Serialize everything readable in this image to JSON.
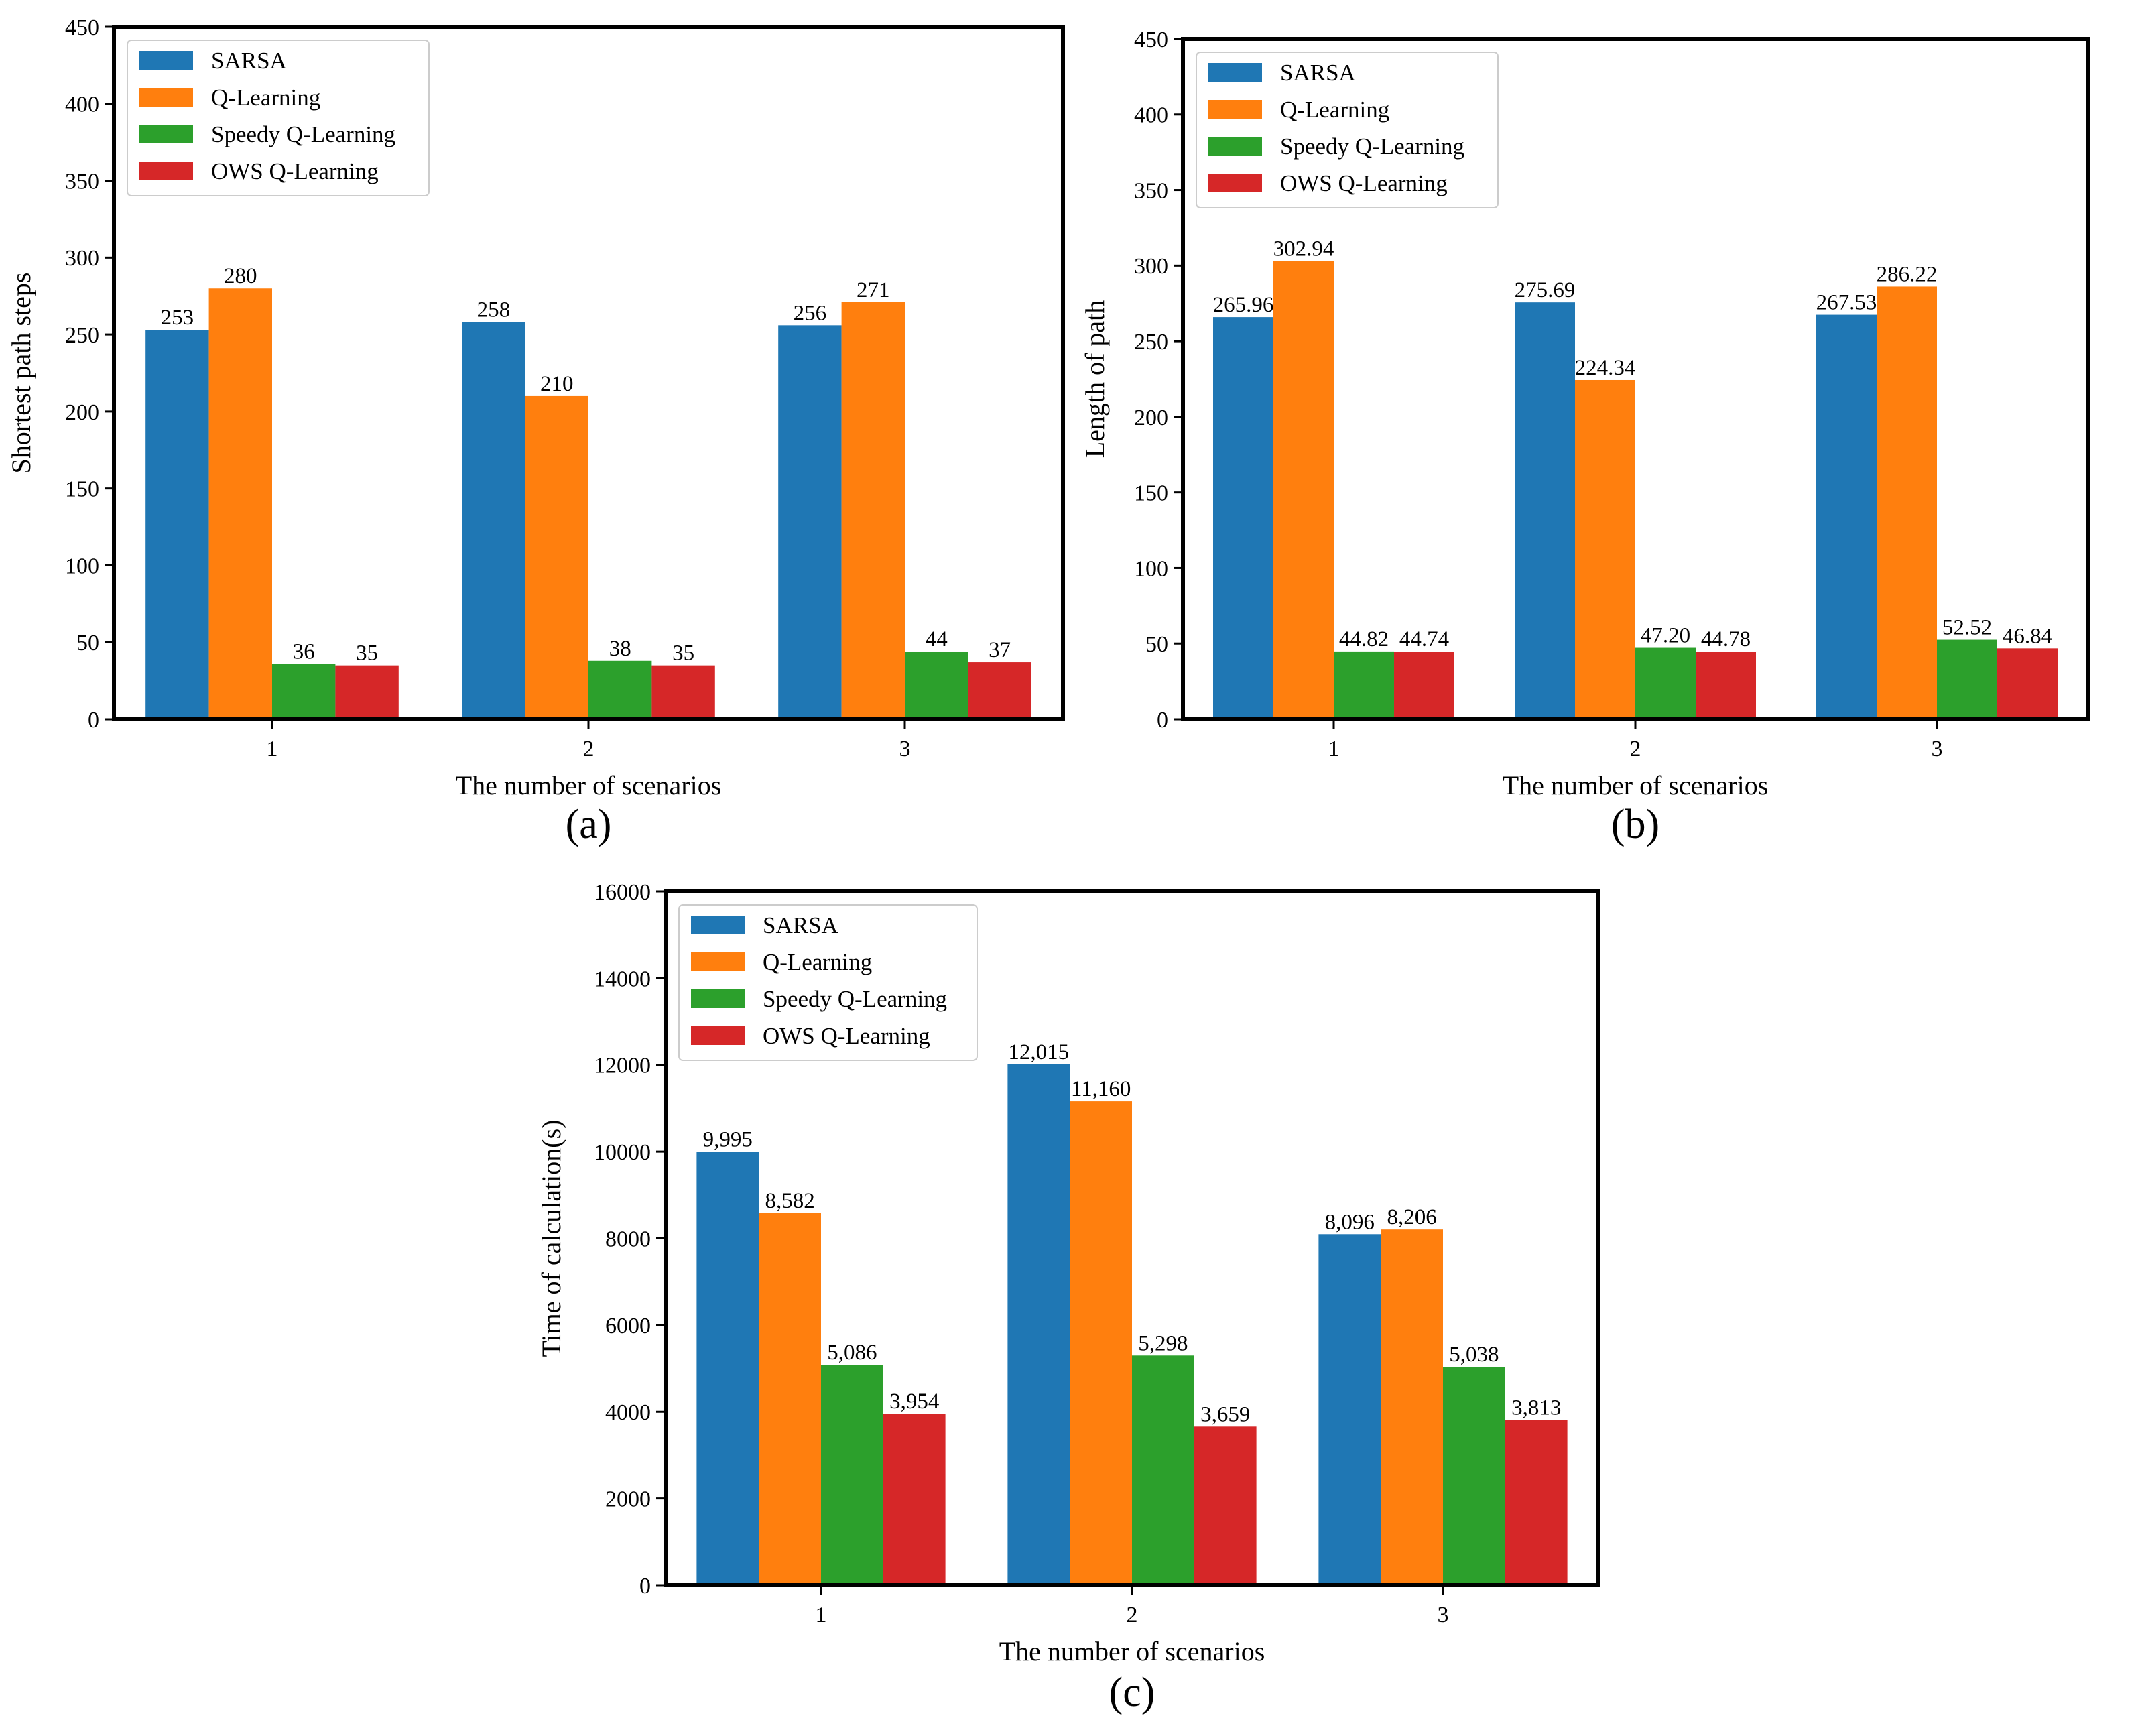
{
  "series_colors": [
    "#1f77b4",
    "#ff7f0e",
    "#2ca02c",
    "#d62728"
  ],
  "chart_data": [
    {
      "type": "bar",
      "panel_label": "(a)",
      "categories": [
        "1",
        "2",
        "3"
      ],
      "series": [
        {
          "name": "SARSA",
          "values": [
            253,
            258,
            256
          ],
          "labels": [
            "253",
            "258",
            "256"
          ]
        },
        {
          "name": "Q-Learning",
          "values": [
            280,
            210,
            271
          ],
          "labels": [
            "280",
            "210",
            "271"
          ]
        },
        {
          "name": "Speedy Q-Learning",
          "values": [
            36,
            38,
            44
          ],
          "labels": [
            "36",
            "38",
            "44"
          ]
        },
        {
          "name": "OWS Q-Learning",
          "values": [
            35,
            35,
            37
          ],
          "labels": [
            "35",
            "35",
            "37"
          ]
        }
      ],
      "xlabel": "The number of scenarios",
      "ylabel": "Shortest path steps",
      "ylim": [
        0,
        450
      ],
      "yticks": [
        0,
        50,
        100,
        150,
        200,
        250,
        300,
        350,
        400,
        450
      ],
      "ytick_labels": [
        "0",
        "50",
        "100",
        "150",
        "200",
        "250",
        "300",
        "350",
        "400",
        "450"
      ],
      "grid": false,
      "legend_position": "top-left"
    },
    {
      "type": "bar",
      "panel_label": "(b)",
      "categories": [
        "1",
        "2",
        "3"
      ],
      "series": [
        {
          "name": "SARSA",
          "values": [
            265.96,
            275.69,
            267.53
          ],
          "labels": [
            "265.96",
            "275.69",
            "267.53"
          ]
        },
        {
          "name": "Q-Learning",
          "values": [
            302.94,
            224.34,
            286.22
          ],
          "labels": [
            "302.94",
            "224.34",
            "286.22"
          ]
        },
        {
          "name": "Speedy Q-Learning",
          "values": [
            44.82,
            47.2,
            52.52
          ],
          "labels": [
            "44.82",
            "47.20",
            "52.52"
          ]
        },
        {
          "name": "OWS Q-Learning",
          "values": [
            44.74,
            44.78,
            46.84
          ],
          "labels": [
            "44.74",
            "44.78",
            "46.84"
          ]
        }
      ],
      "xlabel": "The number of scenarios",
      "ylabel": "Length of path",
      "ylim": [
        0,
        450
      ],
      "yticks": [
        0,
        50,
        100,
        150,
        200,
        250,
        300,
        350,
        400,
        450
      ],
      "ytick_labels": [
        "0",
        "50",
        "100",
        "150",
        "200",
        "250",
        "300",
        "350",
        "400",
        "450"
      ],
      "grid": false,
      "legend_position": "top-left"
    },
    {
      "type": "bar",
      "panel_label": "(c)",
      "categories": [
        "1",
        "2",
        "3"
      ],
      "series": [
        {
          "name": "SARSA",
          "values": [
            9995,
            12015,
            8096
          ],
          "labels": [
            "9,995",
            "12,015",
            "8,096"
          ]
        },
        {
          "name": "Q-Learning",
          "values": [
            8582,
            11160,
            8206
          ],
          "labels": [
            "8,582",
            "11,160",
            "8,206"
          ]
        },
        {
          "name": "Speedy Q-Learning",
          "values": [
            5086,
            5298,
            5038
          ],
          "labels": [
            "5,086",
            "5,298",
            "5,038"
          ]
        },
        {
          "name": "OWS Q-Learning",
          "values": [
            3954,
            3659,
            3813
          ],
          "labels": [
            "3,954",
            "3,659",
            "3,813"
          ]
        }
      ],
      "xlabel": "The number of scenarios",
      "ylabel": "Time of calculation(s)",
      "ylim": [
        0,
        16000
      ],
      "yticks": [
        0,
        2000,
        4000,
        6000,
        8000,
        10000,
        12000,
        14000,
        16000
      ],
      "ytick_labels": [
        "0",
        "2000",
        "4000",
        "6000",
        "8000",
        "10000",
        "12000",
        "14000",
        "16000"
      ],
      "grid": false,
      "legend_position": "top-left"
    }
  ]
}
